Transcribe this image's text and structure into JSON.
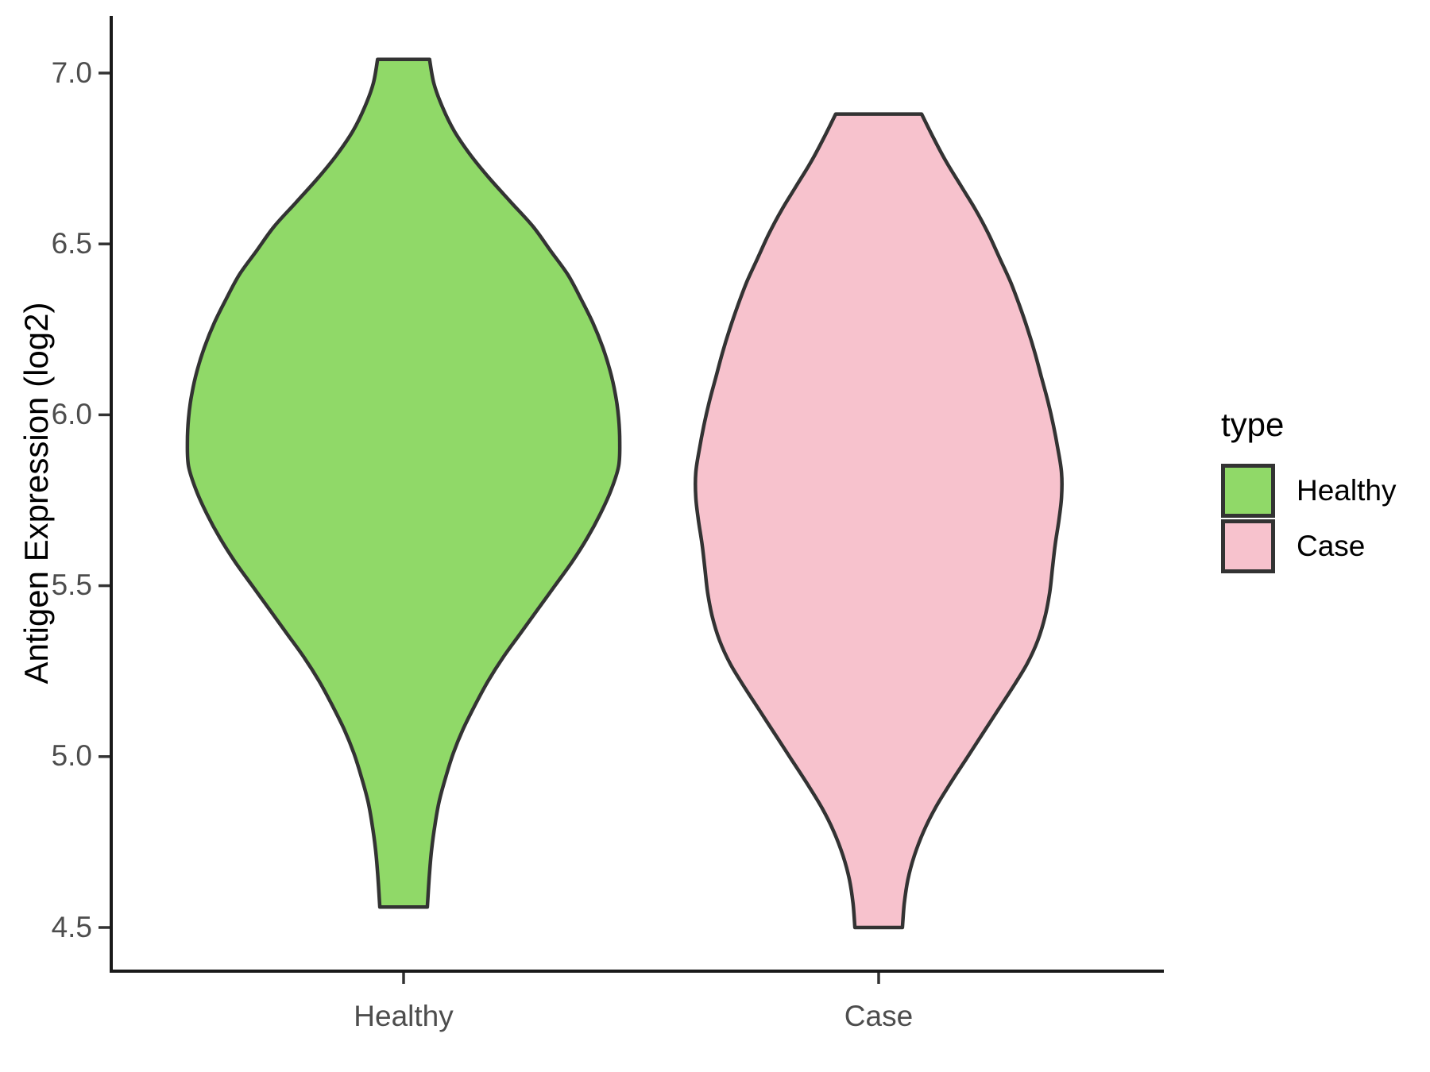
{
  "figure": {
    "background": "#ffffff"
  },
  "chart_data": {
    "type": "violin",
    "title": "",
    "xlabel": "",
    "ylabel": "Antigen Expression (log2)",
    "categories": [
      "Healthy",
      "Case"
    ],
    "y_ticks": [
      7.0,
      6.5,
      6.0,
      5.5,
      5.0,
      4.5
    ],
    "y_tick_labels": [
      "7.0",
      "6.5",
      "6.0",
      "5.5",
      "5.0",
      "4.5"
    ],
    "y_axis_range_shown": [
      4.5,
      7.0
    ],
    "grid": "off",
    "legend_position": "right",
    "legend": {
      "title": "type",
      "entries": [
        {
          "label": "Healthy",
          "color": "#90D968"
        },
        {
          "label": "Case",
          "color": "#F7C2CD"
        }
      ]
    },
    "colors": {
      "outline": "#333333",
      "axis_line": "#1a1a1a",
      "tick_mark": "#333333",
      "tick_text": "#4d4d4d",
      "title_text": "#000000"
    },
    "series": [
      {
        "name": "Healthy",
        "fill": "#90D968",
        "x_index": 0,
        "y_min": 4.56,
        "y_max": 7.04,
        "peak_y": 5.92,
        "max_width_rel": 0.91,
        "profile": [
          [
            7.04,
            0.12
          ],
          [
            6.97,
            0.14
          ],
          [
            6.9,
            0.18
          ],
          [
            6.83,
            0.235
          ],
          [
            6.76,
            0.31
          ],
          [
            6.69,
            0.4
          ],
          [
            6.62,
            0.5
          ],
          [
            6.55,
            0.6
          ],
          [
            6.48,
            0.68
          ],
          [
            6.41,
            0.76
          ],
          [
            6.34,
            0.82
          ],
          [
            6.27,
            0.875
          ],
          [
            6.2,
            0.92
          ],
          [
            6.13,
            0.955
          ],
          [
            6.06,
            0.98
          ],
          [
            5.99,
            0.995
          ],
          [
            5.92,
            1.0
          ],
          [
            5.85,
            0.995
          ],
          [
            5.78,
            0.96
          ],
          [
            5.71,
            0.91
          ],
          [
            5.64,
            0.85
          ],
          [
            5.57,
            0.78
          ],
          [
            5.5,
            0.7
          ],
          [
            5.43,
            0.62
          ],
          [
            5.36,
            0.54
          ],
          [
            5.29,
            0.46
          ],
          [
            5.22,
            0.39
          ],
          [
            5.15,
            0.33
          ],
          [
            5.08,
            0.275
          ],
          [
            5.01,
            0.23
          ],
          [
            4.94,
            0.195
          ],
          [
            4.87,
            0.165
          ],
          [
            4.8,
            0.145
          ],
          [
            4.73,
            0.13
          ],
          [
            4.66,
            0.12
          ],
          [
            4.56,
            0.11
          ]
        ]
      },
      {
        "name": "Case",
        "fill": "#F7C2CD",
        "x_index": 1,
        "y_min": 4.5,
        "y_max": 6.88,
        "peak_y": 5.8,
        "max_width_rel": 0.77,
        "profile": [
          [
            6.88,
            0.235
          ],
          [
            6.81,
            0.3
          ],
          [
            6.74,
            0.37
          ],
          [
            6.67,
            0.45
          ],
          [
            6.6,
            0.53
          ],
          [
            6.53,
            0.6
          ],
          [
            6.46,
            0.66
          ],
          [
            6.39,
            0.72
          ],
          [
            6.32,
            0.77
          ],
          [
            6.25,
            0.815
          ],
          [
            6.18,
            0.855
          ],
          [
            6.11,
            0.89
          ],
          [
            6.04,
            0.925
          ],
          [
            5.97,
            0.955
          ],
          [
            5.9,
            0.98
          ],
          [
            5.83,
            1.0
          ],
          [
            5.76,
            1.0
          ],
          [
            5.69,
            0.985
          ],
          [
            5.62,
            0.965
          ],
          [
            5.55,
            0.95
          ],
          [
            5.48,
            0.935
          ],
          [
            5.41,
            0.91
          ],
          [
            5.34,
            0.87
          ],
          [
            5.27,
            0.81
          ],
          [
            5.2,
            0.73
          ],
          [
            5.13,
            0.645
          ],
          [
            5.06,
            0.56
          ],
          [
            4.99,
            0.475
          ],
          [
            4.92,
            0.39
          ],
          [
            4.85,
            0.31
          ],
          [
            4.78,
            0.245
          ],
          [
            4.71,
            0.195
          ],
          [
            4.64,
            0.16
          ],
          [
            4.57,
            0.14
          ],
          [
            4.5,
            0.13
          ]
        ]
      }
    ]
  }
}
